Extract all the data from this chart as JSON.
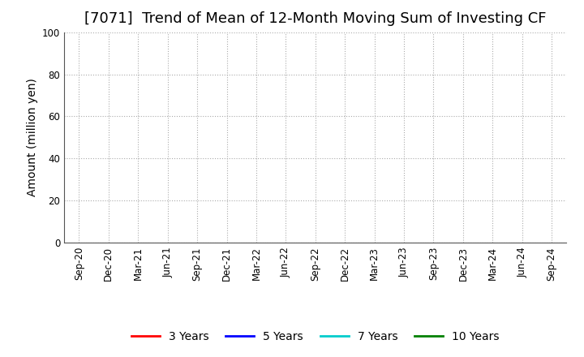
{
  "title": "[7071]  Trend of Mean of 12-Month Moving Sum of Investing CF",
  "ylabel": "Amount (million yen)",
  "ylim": [
    0,
    100
  ],
  "yticks": [
    0,
    20,
    40,
    60,
    80,
    100
  ],
  "x_labels": [
    "Sep-20",
    "Dec-20",
    "Mar-21",
    "Jun-21",
    "Sep-21",
    "Dec-21",
    "Mar-22",
    "Jun-22",
    "Sep-22",
    "Dec-22",
    "Mar-23",
    "Jun-23",
    "Sep-23",
    "Dec-23",
    "Mar-24",
    "Jun-24",
    "Sep-24"
  ],
  "legend_entries": [
    {
      "label": "3 Years",
      "color": "#ff0000"
    },
    {
      "label": "5 Years",
      "color": "#0000ff"
    },
    {
      "label": "7 Years",
      "color": "#00cccc"
    },
    {
      "label": "10 Years",
      "color": "#008000"
    }
  ],
  "background_color": "#ffffff",
  "grid_color": "#aaaaaa",
  "title_fontsize": 13,
  "axis_label_fontsize": 10,
  "tick_fontsize": 8.5,
  "legend_fontsize": 10
}
